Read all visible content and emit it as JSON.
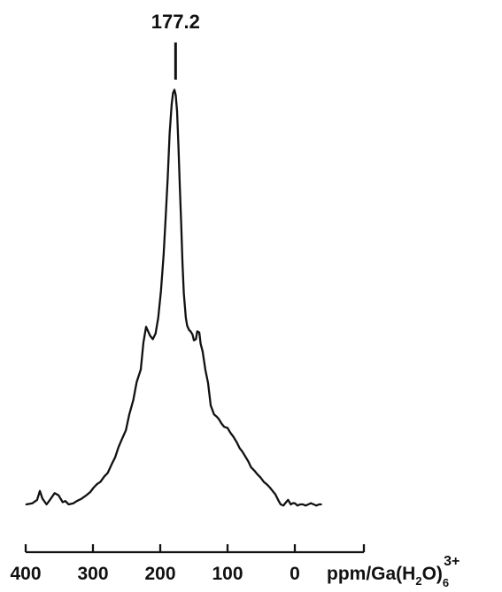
{
  "chart_data": {
    "type": "line",
    "title": "",
    "xlabel": "ppm/Ga(H2O)6 3+",
    "ylabel": "",
    "x_reversed": true,
    "xlim": [
      410,
      -45
    ],
    "x_ticks": [
      400,
      300,
      200,
      100,
      0
    ],
    "x_tick_labels": [
      "400",
      "300",
      "200",
      "100",
      "0"
    ],
    "grid": false,
    "axis_unit": {
      "main": "ppm/Ga(H",
      "sub1": "2",
      "mid": "O)",
      "sub2": "6",
      "sup": "3+"
    },
    "peak_annotation": {
      "x": 177.2,
      "label": "177.2"
    },
    "series": [
      {
        "x": [
          399,
          390,
          383,
          379,
          375,
          369,
          364,
          357,
          351,
          345,
          341,
          336,
          329,
          324,
          317,
          310,
          304,
          299,
          294,
          289,
          283,
          278,
          272,
          267,
          262,
          257,
          251,
          246,
          240,
          235,
          229,
          225,
          221,
          215,
          211,
          207,
          203,
          199,
          195,
          192,
          189,
          186,
          183,
          181,
          179,
          177,
          175,
          173,
          171,
          169,
          167,
          165,
          162,
          160,
          157,
          155,
          152,
          150,
          147,
          145,
          142,
          140,
          137,
          133,
          129,
          125,
          120,
          116,
          113,
          109,
          105,
          100,
          96,
          91,
          86,
          82,
          78,
          74,
          69,
          65,
          60,
          56,
          51,
          46,
          42,
          37,
          33,
          29,
          24,
          21,
          17,
          13,
          10,
          6,
          3,
          0,
          -4,
          -8,
          -12,
          -16,
          -20,
          -24,
          -28,
          -32,
          -36,
          -39
        ],
        "y": [
          0,
          1,
          4,
          12,
          5,
          0,
          4,
          10,
          8,
          2,
          3,
          0,
          1,
          3,
          5,
          8,
          11,
          15,
          18,
          20,
          25,
          28,
          36,
          42,
          51,
          58,
          66,
          80,
          93,
          109,
          120,
          144,
          158,
          150,
          147,
          152,
          166,
          190,
          222,
          255,
          290,
          330,
          356,
          366,
          369,
          364,
          350,
          320,
          285,
          251,
          215,
          188,
          166,
          159,
          155,
          154,
          151,
          146,
          147,
          154,
          153,
          143,
          136,
          120,
          108,
          88,
          80,
          78,
          76,
          72,
          69,
          68,
          64,
          60,
          55,
          50,
          47,
          43,
          38,
          33,
          30,
          27,
          24,
          20,
          18,
          15,
          12,
          9,
          3,
          0,
          -1,
          2,
          4,
          0,
          1,
          1,
          -1,
          0,
          0,
          -1,
          0,
          1,
          0,
          -1,
          0,
          0
        ]
      }
    ]
  }
}
